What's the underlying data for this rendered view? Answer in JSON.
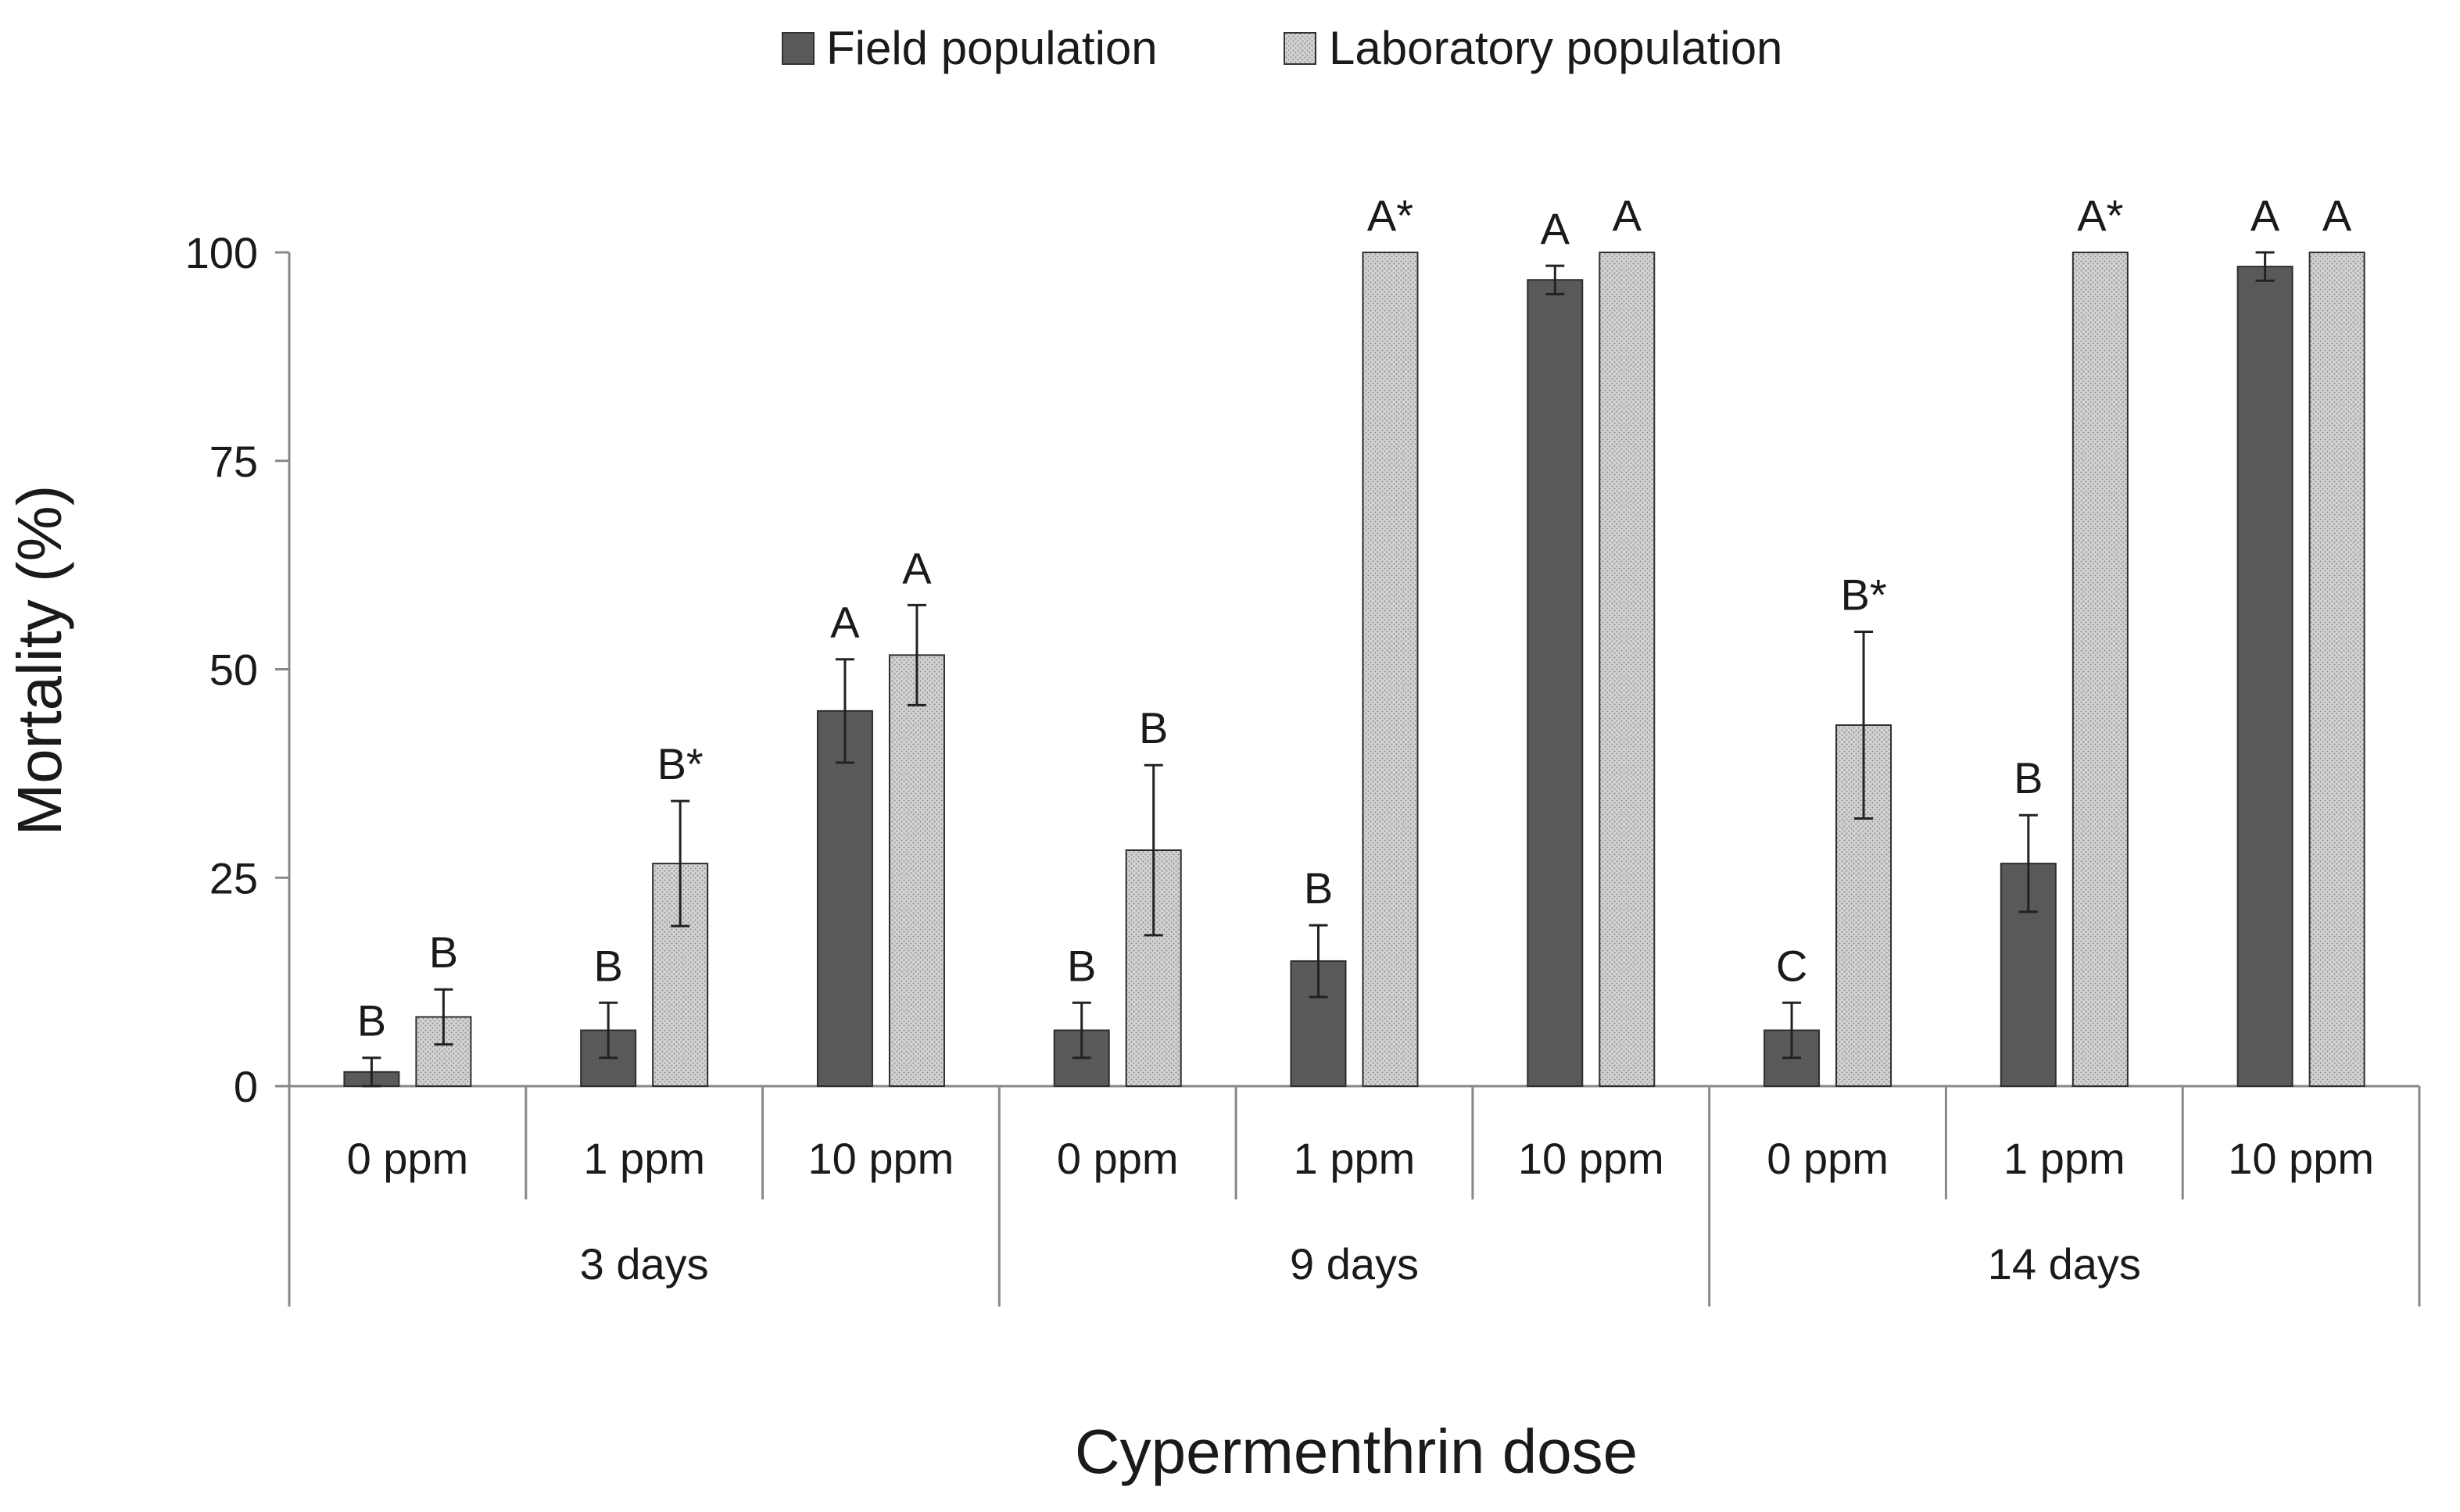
{
  "chart_data": {
    "type": "bar",
    "title": "",
    "xlabel": "Cypermenthrin dose",
    "ylabel": "Mortality (%)",
    "ylim": [
      0,
      100
    ],
    "yticks": [
      0,
      25,
      50,
      75,
      100
    ],
    "grid": false,
    "legend_position": "top-center",
    "groups": [
      {
        "name": "3 days",
        "categories": [
          "0 ppm",
          "1 ppm",
          "10 ppm"
        ]
      },
      {
        "name": "9 days",
        "categories": [
          "0 ppm",
          "1 ppm",
          "10 ppm"
        ]
      },
      {
        "name": "14 days",
        "categories": [
          "0 ppm",
          "1 ppm",
          "10 ppm"
        ]
      }
    ],
    "series": [
      {
        "name": "Field population",
        "color": "#595959",
        "pattern": "solid",
        "values": [
          1.7,
          6.7,
          45.0,
          6.7,
          15.0,
          96.7,
          6.7,
          26.7,
          98.3
        ],
        "errors": [
          1.7,
          3.3,
          6.2,
          3.3,
          4.3,
          1.7,
          3.3,
          5.8,
          1.7
        ],
        "labels": [
          "B",
          "B",
          "A",
          "B",
          "B",
          "A",
          "C",
          "B",
          "A"
        ]
      },
      {
        "name": "Laboratory population",
        "color": "#c8c8c8",
        "pattern": "dotted",
        "values": [
          8.3,
          26.7,
          51.7,
          28.3,
          100,
          100,
          43.3,
          100,
          100
        ],
        "errors": [
          3.3,
          7.5,
          6.0,
          10.2,
          0,
          0,
          11.2,
          0,
          0
        ],
        "labels": [
          "B",
          "B*",
          "A",
          "B",
          "A*",
          "A",
          "B*",
          "A*",
          "A"
        ]
      }
    ]
  }
}
